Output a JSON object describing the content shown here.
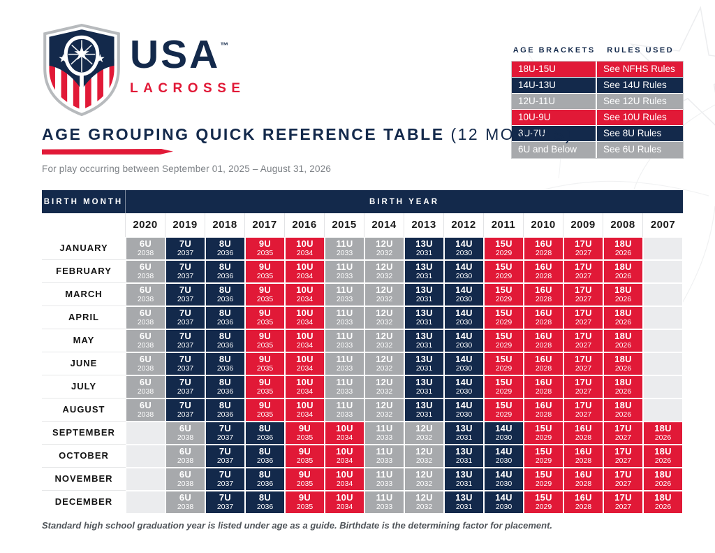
{
  "brand": {
    "usa": "USA",
    "trademark": "™",
    "lacrosse": "LACROSSE"
  },
  "title": {
    "main": "AGE GROUPING QUICK REFERENCE TABLE",
    "suffix": "(12 MONTHS)"
  },
  "subtitle": "For play occurring between September 01, 2025 – August 31, 2026",
  "rules_table": {
    "headers": [
      "AGE BRACKETS",
      "RULES USED"
    ],
    "rows": [
      {
        "bracket": "18U-15U",
        "rule": "See NFHS Rules",
        "color": "red"
      },
      {
        "bracket": "14U-13U",
        "rule": "See 14U Rules",
        "color": "navy"
      },
      {
        "bracket": "12U-11U",
        "rule": "See 12U Rules",
        "color": "gray"
      },
      {
        "bracket": "10U-9U",
        "rule": "See 10U Rules",
        "color": "red"
      },
      {
        "bracket": "8U-7U",
        "rule": "See 8U Rules",
        "color": "navy"
      },
      {
        "bracket": "6U and Below",
        "rule": "See 6U Rules",
        "color": "gray"
      }
    ]
  },
  "main_table": {
    "corner_header": "BIRTH MONTH",
    "year_header": "BIRTH YEAR",
    "years": [
      "2020",
      "2019",
      "2018",
      "2017",
      "2016",
      "2015",
      "2014",
      "2013",
      "2012",
      "2011",
      "2010",
      "2009",
      "2008",
      "2007"
    ],
    "ages": [
      {
        "label": "6U",
        "grad": "2038",
        "color": "gray"
      },
      {
        "label": "7U",
        "grad": "2037",
        "color": "navy"
      },
      {
        "label": "8U",
        "grad": "2036",
        "color": "navy"
      },
      {
        "label": "9U",
        "grad": "2035",
        "color": "red"
      },
      {
        "label": "10U",
        "grad": "2034",
        "color": "red"
      },
      {
        "label": "11U",
        "grad": "2033",
        "color": "gray"
      },
      {
        "label": "12U",
        "grad": "2032",
        "color": "gray"
      },
      {
        "label": "13U",
        "grad": "2031",
        "color": "navy"
      },
      {
        "label": "14U",
        "grad": "2030",
        "color": "navy"
      },
      {
        "label": "15U",
        "grad": "2029",
        "color": "red"
      },
      {
        "label": "16U",
        "grad": "2028",
        "color": "red"
      },
      {
        "label": "17U",
        "grad": "2027",
        "color": "red"
      },
      {
        "label": "18U",
        "grad": "2026",
        "color": "red"
      }
    ],
    "months": [
      {
        "name": "JANUARY",
        "shift": 0
      },
      {
        "name": "FEBRUARY",
        "shift": 0
      },
      {
        "name": "MARCH",
        "shift": 0
      },
      {
        "name": "APRIL",
        "shift": 0
      },
      {
        "name": "MAY",
        "shift": 0
      },
      {
        "name": "JUNE",
        "shift": 0
      },
      {
        "name": "JULY",
        "shift": 0
      },
      {
        "name": "AUGUST",
        "shift": 0
      },
      {
        "name": "SEPTEMBER",
        "shift": 1
      },
      {
        "name": "OCTOBER",
        "shift": 1
      },
      {
        "name": "NOVEMBER",
        "shift": 1
      },
      {
        "name": "DECEMBER",
        "shift": 1
      }
    ]
  },
  "footer": "Standard high school graduation year is listed under age as a guide. Birthdate is the determining factor for placement.",
  "colors": {
    "navy": "#13294B",
    "red": "#E11937",
    "gray": "#A7A9AC",
    "empty": "#EBECEE"
  }
}
